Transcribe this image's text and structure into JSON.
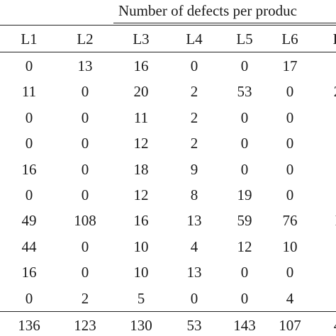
{
  "table": {
    "group_header": "Number of defects per produc",
    "columns": [
      "L1",
      "L2",
      "L3",
      "L4",
      "L5",
      "L6",
      "L"
    ],
    "rows": [
      [
        "0",
        "13",
        "16",
        "0",
        "0",
        "17",
        ""
      ],
      [
        "11",
        "0",
        "20",
        "2",
        "53",
        "0",
        "2"
      ],
      [
        "0",
        "0",
        "11",
        "2",
        "0",
        "0",
        ""
      ],
      [
        "0",
        "0",
        "12",
        "2",
        "0",
        "0",
        ""
      ],
      [
        "16",
        "0",
        "18",
        "9",
        "0",
        "0",
        ""
      ],
      [
        "0",
        "0",
        "12",
        "8",
        "19",
        "0",
        ""
      ],
      [
        "49",
        "108",
        "16",
        "13",
        "59",
        "76",
        "I"
      ],
      [
        "44",
        "0",
        "10",
        "4",
        "12",
        "10",
        ""
      ],
      [
        "16",
        "0",
        "10",
        "13",
        "0",
        "0",
        ""
      ],
      [
        "0",
        "2",
        "5",
        "0",
        "0",
        "4",
        ""
      ]
    ],
    "totals": [
      "136",
      "123",
      "130",
      "53",
      "143",
      "107",
      "4"
    ]
  }
}
